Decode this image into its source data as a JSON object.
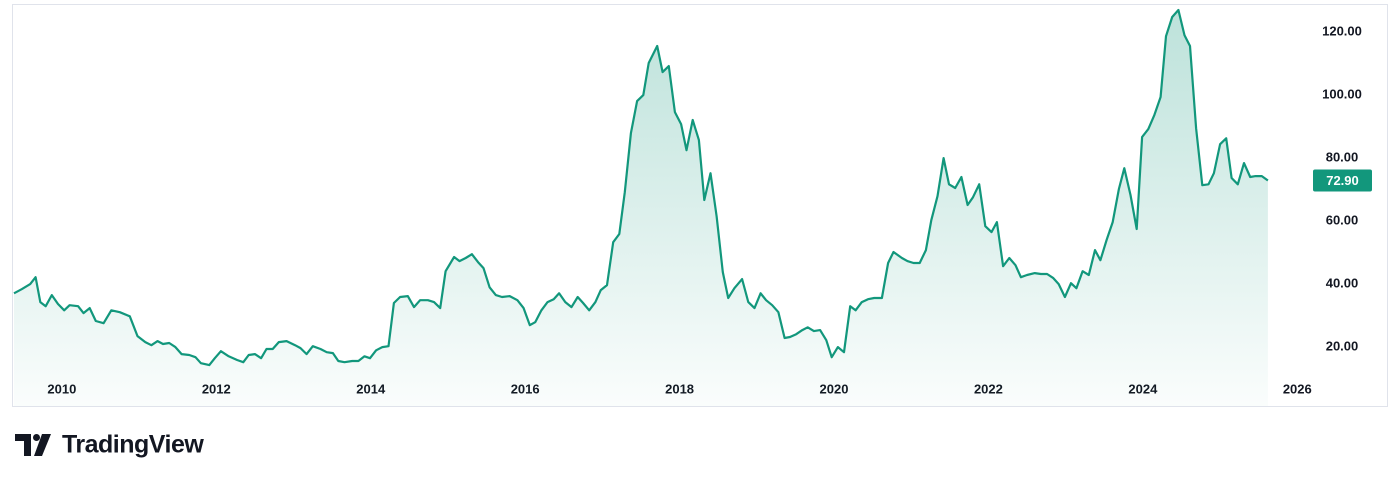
{
  "chart_data": {
    "type": "line",
    "x": [
      2009.38,
      2009.48,
      2009.59,
      2009.66,
      2009.72,
      2009.79,
      2009.87,
      2009.95,
      2010.03,
      2010.1,
      2010.21,
      2010.28,
      2010.36,
      2010.44,
      2010.54,
      2010.64,
      2010.75,
      2010.88,
      2010.98,
      2011.08,
      2011.16,
      2011.24,
      2011.31,
      2011.39,
      2011.47,
      2011.55,
      2011.65,
      2011.73,
      2011.8,
      2011.91,
      2011.98,
      2012.06,
      2012.16,
      2012.27,
      2012.35,
      2012.42,
      2012.5,
      2012.58,
      2012.65,
      2012.73,
      2012.81,
      2012.91,
      2013.02,
      2013.09,
      2013.17,
      2013.25,
      2013.35,
      2013.43,
      2013.51,
      2013.58,
      2013.66,
      2013.76,
      2013.84,
      2013.92,
      2013.99,
      2014.07,
      2014.15,
      2014.23,
      2014.3,
      2014.38,
      2014.48,
      2014.56,
      2014.64,
      2014.74,
      2014.82,
      2014.9,
      2014.97,
      2015.08,
      2015.15,
      2015.23,
      2015.31,
      2015.39,
      2015.46,
      2015.54,
      2015.62,
      2015.7,
      2015.8,
      2015.9,
      2015.98,
      2016.06,
      2016.13,
      2016.21,
      2016.29,
      2016.37,
      2016.44,
      2016.52,
      2016.6,
      2016.68,
      2016.75,
      2016.83,
      2016.91,
      2016.98,
      2017.06,
      2017.14,
      2017.22,
      2017.29,
      2017.37,
      2017.45,
      2017.53,
      2017.6,
      2017.71,
      2017.78,
      2017.86,
      2017.94,
      2018.02,
      2018.09,
      2018.17,
      2018.25,
      2018.32,
      2018.4,
      2018.48,
      2018.56,
      2018.63,
      2018.71,
      2018.81,
      2018.89,
      2018.97,
      2019.05,
      2019.12,
      2019.2,
      2019.28,
      2019.36,
      2019.43,
      2019.51,
      2019.59,
      2019.66,
      2019.74,
      2019.82,
      2019.9,
      2019.97,
      2020.05,
      2020.13,
      2020.21,
      2020.28,
      2020.36,
      2020.44,
      2020.52,
      2020.62,
      2020.7,
      2020.77,
      2020.88,
      2020.95,
      2021.03,
      2021.11,
      2021.19,
      2021.26,
      2021.34,
      2021.42,
      2021.49,
      2021.57,
      2021.65,
      2021.73,
      2021.8,
      2021.88,
      2021.96,
      2022.04,
      2022.11,
      2022.19,
      2022.27,
      2022.35,
      2022.42,
      2022.5,
      2022.6,
      2022.68,
      2022.76,
      2022.84,
      2022.91,
      2022.99,
      2023.07,
      2023.14,
      2023.22,
      2023.3,
      2023.38,
      2023.45,
      2023.53,
      2023.61,
      2023.69,
      2023.76,
      2023.84,
      2023.92,
      2023.99,
      2024.07,
      2024.15,
      2024.23,
      2024.3,
      2024.38,
      2024.46,
      2024.54,
      2024.61,
      2024.69,
      2024.77,
      2024.85,
      2024.92,
      2025.0,
      2025.08,
      2025.15,
      2025.23,
      2025.31,
      2025.39,
      2025.46,
      2025.54,
      2025.62
    ],
    "values": [
      37.1,
      38.4,
      40,
      42.2,
      34.3,
      33,
      36.5,
      33.7,
      31.7,
      33.3,
      33,
      30.8,
      32.4,
      28.3,
      27.6,
      31.7,
      31.1,
      29.8,
      23.5,
      21.6,
      20.6,
      21.9,
      21,
      21.3,
      20,
      17.8,
      17.5,
      16.8,
      14.9,
      14.3,
      16.5,
      18.7,
      17.1,
      15.9,
      15.2,
      17.5,
      17.8,
      16.5,
      19.4,
      19.4,
      21.6,
      21.9,
      20.6,
      19.7,
      17.8,
      20.3,
      19.4,
      18.4,
      18.1,
      15.6,
      15.2,
      15.6,
      15.6,
      17.1,
      16.5,
      19,
      20,
      20.3,
      34,
      35.9,
      36.2,
      32.7,
      34.9,
      34.9,
      34.3,
      32.4,
      44.1,
      48.6,
      47.3,
      48.3,
      49.5,
      47,
      45.1,
      39,
      36.5,
      35.9,
      36.2,
      34.9,
      32.4,
      27,
      27.9,
      31.7,
      34.3,
      35.2,
      37.1,
      34.3,
      32.7,
      35.9,
      34,
      31.7,
      34.3,
      38.1,
      39.7,
      53.3,
      55.9,
      69.2,
      87.9,
      98.1,
      100,
      110.2,
      115.6,
      107.3,
      109.2,
      94.6,
      90.8,
      82.5,
      92.1,
      85.7,
      66.7,
      75.2,
      61.6,
      43.8,
      35.6,
      38.7,
      41.6,
      34.3,
      32.4,
      37.1,
      34.9,
      33.3,
      31.1,
      22.9,
      23.2,
      24.1,
      25.4,
      26.3,
      25.1,
      25.4,
      22.2,
      16.8,
      20,
      18.4,
      33,
      31.7,
      34.3,
      35.2,
      35.6,
      35.6,
      46.7,
      50.2,
      48.3,
      47.3,
      46.7,
      46.7,
      50.8,
      60.3,
      67.9,
      80,
      71.7,
      70.5,
      74,
      65.1,
      67.6,
      71.7,
      58.4,
      56.5,
      59.7,
      45.7,
      48.3,
      46,
      42.2,
      42.9,
      43.5,
      43.2,
      43.2,
      41.9,
      40,
      35.9,
      40.3,
      38.7,
      44.1,
      42.9,
      50.8,
      47.6,
      54,
      59.7,
      70.2,
      76.8,
      68.3,
      57.5,
      86.7,
      89.2,
      93.7,
      99.4,
      118.7,
      124.8,
      127,
      119,
      115.6,
      89.5,
      71.4,
      71.7,
      75.2,
      84.4,
      86.3,
      73.7,
      71.7,
      78.4,
      74,
      74.3,
      74.3,
      72.9
    ],
    "color": "#12977c",
    "last_price": {
      "value": 72.9,
      "label": "72.90"
    },
    "xlim": [
      2009.38,
      2026.1
    ],
    "ylim": [
      10.2,
      128.6
    ],
    "xticks": [
      2010,
      2012,
      2014,
      2016,
      2018,
      2020,
      2022,
      2024,
      2026
    ],
    "yticks": [
      {
        "value": 20,
        "label": "20.00"
      },
      {
        "value": 40,
        "label": "40.00"
      },
      {
        "value": 60,
        "label": "60.00"
      },
      {
        "value": 80,
        "label": "80.00"
      },
      {
        "value": 100,
        "label": "100.00"
      },
      {
        "value": 120,
        "label": "120.00"
      }
    ],
    "grid": false
  },
  "branding": "TradingView"
}
